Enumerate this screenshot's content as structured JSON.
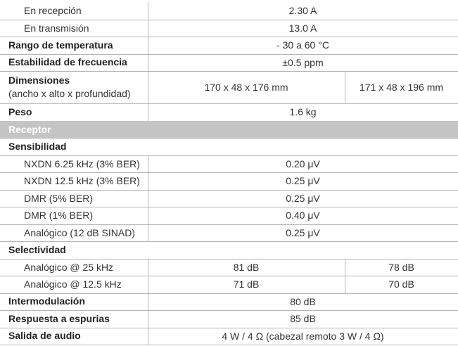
{
  "sections": [
    {
      "rows": [
        {
          "subrows": [
            {
              "label": "En recepción",
              "values": [
                "2.30 A"
              ]
            },
            {
              "label": "En transmisión",
              "values": [
                "13.0 A"
              ]
            }
          ]
        },
        {
          "label": "Rango de temperatura",
          "values": [
            "- 30 a 60  °C"
          ]
        },
        {
          "label": "Estabilidad de frecuencia",
          "values": [
            "±0.5 ppm"
          ]
        },
        {
          "label": "Dimensiones",
          "note": "(ancho x alto x profundidad)",
          "values": [
            "170 x 48 x 176 mm",
            "171 x 48 x 196 mm"
          ]
        },
        {
          "label": "Peso",
          "values": [
            "1.6 kg"
          ]
        }
      ]
    },
    {
      "title": "Receptor",
      "rows": [
        {
          "label": "Sensibilidad",
          "subrows": [
            {
              "label": "NXDN 6.25 kHz (3% BER)",
              "values": [
                "0.20 μV"
              ]
            },
            {
              "label": "NXDN 12.5 kHz (3% BER)",
              "values": [
                "0.25 μV"
              ]
            },
            {
              "label": "DMR (5% BER)",
              "values": [
                "0.25 μV"
              ]
            },
            {
              "label": "DMR (1% BER)",
              "values": [
                "0.40 μV"
              ]
            },
            {
              "label": "Analógico (12 dB SINAD)",
              "values": [
                "0.25 μV"
              ]
            }
          ]
        },
        {
          "label": "Selectividad",
          "subrows": [
            {
              "label": "Analógico @ 25 kHz",
              "values": [
                "81 dB",
                "78 dB"
              ]
            },
            {
              "label": "Analógico @ 12.5 kHz",
              "values": [
                "71 dB",
                "70 dB"
              ]
            }
          ]
        },
        {
          "label": "Intermodulación",
          "values": [
            "80 dB"
          ]
        },
        {
          "label": "Respuesta a espurias",
          "values": [
            "85 dB"
          ]
        },
        {
          "label": "Salida de audio",
          "values": [
            "4 W / 4 Ω (cabezal remoto 3 W / 4 Ω)"
          ]
        }
      ]
    }
  ]
}
